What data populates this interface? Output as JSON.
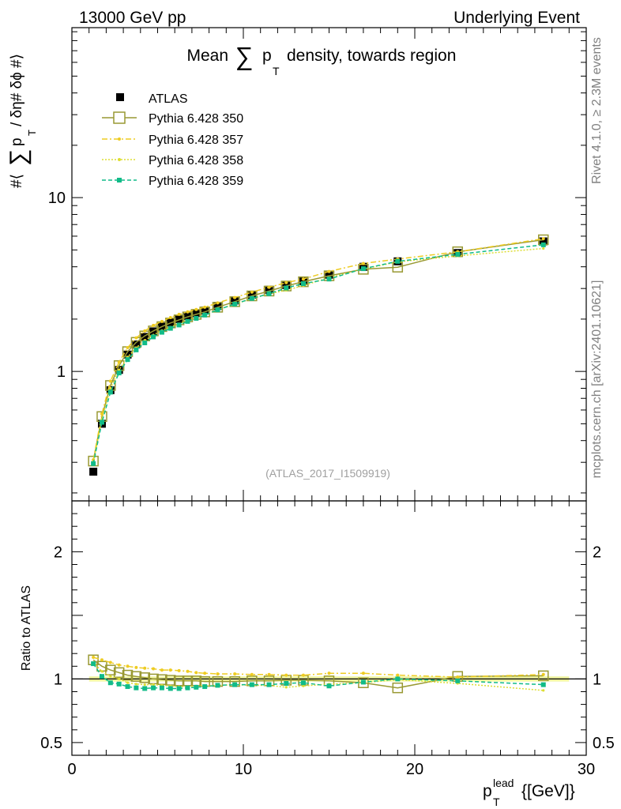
{
  "header": {
    "left": "13000 GeV pp",
    "right": "Underlying Event"
  },
  "side": {
    "rivet": "Rivet 4.1.0, ≥ 2.3M events",
    "mcplots": "mcplots.cern.ch [arXiv:2401.10621]"
  },
  "analysis_id": "(ATLAS_2017_I1509919)",
  "chart_data": [
    {
      "type": "line",
      "panel": "main",
      "title_parts": {
        "pre": "Mean",
        "sum": "∑",
        "p": "p",
        "sub": "T",
        "post": "density, towards region"
      },
      "ylabel_parts": {
        "a": "#⟨",
        "sum": "∑",
        "p": "p",
        "sub": "T",
        "b": "/ δη# δϕ #⟩"
      },
      "yscale": "log",
      "xlim": [
        0,
        30
      ],
      "ylim": [
        0.18,
        95
      ],
      "y_ticks": [
        1,
        10
      ],
      "y_tick_labels": [
        "1",
        "10"
      ],
      "x": [
        1.25,
        1.75,
        2.25,
        2.75,
        3.25,
        3.75,
        4.25,
        4.75,
        5.25,
        5.75,
        6.25,
        6.75,
        7.25,
        7.75,
        8.5,
        9.5,
        10.5,
        11.5,
        12.5,
        13.5,
        15.0,
        17.0,
        19.0,
        22.5,
        27.5
      ],
      "legend": [
        "ATLAS",
        "Pythia 6.428 350",
        "Pythia 6.428 357",
        "Pythia 6.428 358",
        "Pythia 6.428 359"
      ],
      "series": [
        {
          "name": "ATLAS",
          "color": "#000000",
          "values": [
            0.265,
            0.5,
            0.78,
            1.02,
            1.25,
            1.43,
            1.58,
            1.7,
            1.81,
            1.91,
            2.0,
            2.08,
            2.16,
            2.24,
            2.38,
            2.56,
            2.76,
            2.95,
            3.14,
            3.3,
            3.6,
            4.0,
            4.3,
            4.8,
            5.6
          ]
        },
        {
          "name": "Pythia 6.428 350",
          "color": "#999933",
          "values": [
            0.305,
            0.55,
            0.83,
            1.08,
            1.3,
            1.47,
            1.6,
            1.71,
            1.81,
            1.9,
            1.98,
            2.06,
            2.13,
            2.2,
            2.34,
            2.52,
            2.72,
            2.9,
            3.1,
            3.28,
            3.55,
            3.87,
            3.98,
            4.88,
            5.72
          ]
        },
        {
          "name": "Pythia 6.428 357",
          "color": "#eecc22",
          "values": [
            0.31,
            0.57,
            0.88,
            1.13,
            1.37,
            1.56,
            1.71,
            1.84,
            1.94,
            2.04,
            2.13,
            2.2,
            2.27,
            2.34,
            2.48,
            2.66,
            2.86,
            3.05,
            3.24,
            3.4,
            3.76,
            4.18,
            4.43,
            4.88,
            5.8
          ]
        },
        {
          "name": "Pythia 6.428 358",
          "color": "#dddd33",
          "values": [
            0.3,
            0.53,
            0.8,
            1.02,
            1.21,
            1.37,
            1.51,
            1.62,
            1.72,
            1.8,
            1.88,
            1.96,
            2.04,
            2.12,
            2.26,
            2.44,
            2.62,
            2.8,
            2.93,
            3.12,
            3.46,
            3.88,
            4.27,
            4.62,
            5.1
          ]
        },
        {
          "name": "Pythia 6.428 359",
          "color": "#11bb88",
          "values": [
            0.295,
            0.51,
            0.76,
            0.98,
            1.17,
            1.33,
            1.46,
            1.58,
            1.68,
            1.77,
            1.85,
            1.94,
            2.02,
            2.11,
            2.26,
            2.44,
            2.63,
            2.8,
            3.02,
            3.2,
            3.4,
            3.9,
            4.3,
            4.72,
            5.35
          ]
        }
      ]
    },
    {
      "type": "line",
      "panel": "ratio",
      "ylabel": "Ratio to ATLAS",
      "xlabel_parts": {
        "p": "p",
        "sub": "T",
        "sup": "lead",
        "unit": "{[GeV]}"
      },
      "xlim": [
        0,
        30
      ],
      "ylim": [
        0.4,
        2.4
      ],
      "y_ticks": [
        0.5,
        1,
        2
      ],
      "y_tick_labels": [
        "0.5",
        "1",
        "2"
      ],
      "x_ticks": [
        0,
        10,
        20,
        30
      ],
      "x_tick_labels": [
        "0",
        "10",
        "20",
        "30"
      ],
      "band": [
        0.98,
        1.02
      ],
      "x": [
        1.25,
        1.75,
        2.25,
        2.75,
        3.25,
        3.75,
        4.25,
        4.75,
        5.25,
        5.75,
        6.25,
        6.75,
        7.25,
        7.75,
        8.5,
        9.5,
        10.5,
        11.5,
        12.5,
        13.5,
        15.0,
        17.0,
        19.0,
        22.5,
        27.5
      ],
      "series": [
        {
          "name": "Pythia 6.428 350",
          "color": "#999933",
          "values": [
            1.15,
            1.1,
            1.07,
            1.05,
            1.03,
            1.02,
            1.01,
            1.0,
            0.995,
            0.99,
            0.985,
            0.985,
            0.985,
            0.98,
            0.98,
            0.98,
            0.985,
            0.985,
            0.99,
            0.99,
            0.985,
            0.97,
            0.93,
            1.02,
            1.025
          ]
        },
        {
          "name": "Pythia 6.428 357",
          "color": "#eecc22",
          "values": [
            1.17,
            1.15,
            1.13,
            1.11,
            1.1,
            1.09,
            1.085,
            1.08,
            1.07,
            1.07,
            1.065,
            1.06,
            1.05,
            1.045,
            1.04,
            1.04,
            1.035,
            1.035,
            1.03,
            1.03,
            1.045,
            1.045,
            1.03,
            1.015,
            1.035
          ]
        },
        {
          "name": "Pythia 6.428 358",
          "color": "#dddd33",
          "values": [
            1.13,
            1.06,
            1.02,
            1.0,
            0.97,
            0.96,
            0.955,
            0.955,
            0.95,
            0.945,
            0.94,
            0.94,
            0.945,
            0.945,
            0.95,
            0.955,
            0.95,
            0.95,
            0.935,
            0.945,
            0.96,
            0.97,
            0.995,
            0.965,
            0.91
          ]
        },
        {
          "name": "Pythia 6.428 359",
          "color": "#11bb88",
          "values": [
            1.12,
            1.02,
            0.97,
            0.96,
            0.94,
            0.93,
            0.925,
            0.93,
            0.93,
            0.925,
            0.925,
            0.93,
            0.935,
            0.94,
            0.95,
            0.955,
            0.955,
            0.955,
            0.965,
            0.97,
            0.945,
            0.975,
            1.0,
            0.985,
            0.955
          ]
        }
      ]
    }
  ]
}
